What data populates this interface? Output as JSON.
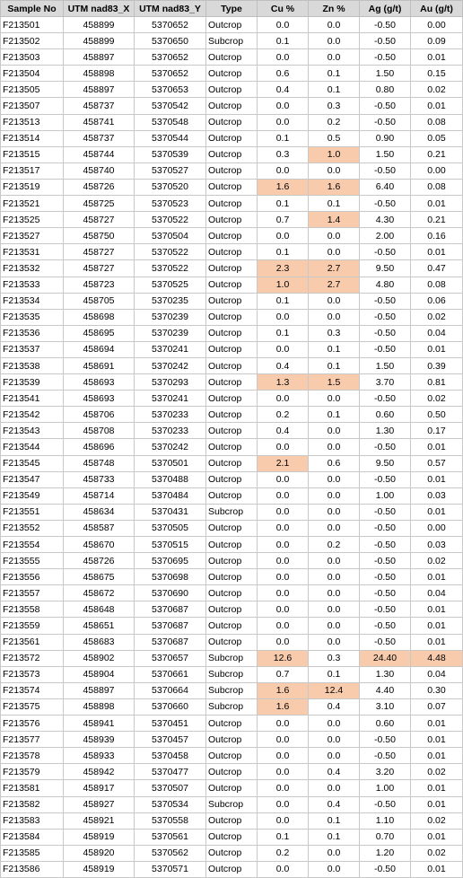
{
  "headers": [
    "Sample No",
    "UTM nad83_X",
    "UTM nad83_Y",
    "Type",
    "Cu %",
    "Zn %",
    "Ag (g/t)",
    "Au (g/t)"
  ],
  "highlight_color": "#f8cbad",
  "header_color": "#d9d9d9",
  "rows": [
    {
      "cells": [
        "F213501",
        "458899",
        "5370652",
        "Outcrop",
        "0.0",
        "0.0",
        "-0.50",
        "0.00"
      ],
      "hl": []
    },
    {
      "cells": [
        "F213502",
        "458899",
        "5370650",
        "Subcrop",
        "0.1",
        "0.0",
        "-0.50",
        "0.09"
      ],
      "hl": []
    },
    {
      "cells": [
        "F213503",
        "458897",
        "5370652",
        "Outcrop",
        "0.0",
        "0.0",
        "-0.50",
        "0.01"
      ],
      "hl": []
    },
    {
      "cells": [
        "F213504",
        "458898",
        "5370652",
        "Outcrop",
        "0.6",
        "0.1",
        "1.50",
        "0.15"
      ],
      "hl": []
    },
    {
      "cells": [
        "F213505",
        "458897",
        "5370653",
        "Outcrop",
        "0.4",
        "0.1",
        "0.80",
        "0.02"
      ],
      "hl": []
    },
    {
      "cells": [
        "F213507",
        "458737",
        "5370542",
        "Outcrop",
        "0.0",
        "0.3",
        "-0.50",
        "0.01"
      ],
      "hl": []
    },
    {
      "cells": [
        "F213513",
        "458741",
        "5370548",
        "Outcrop",
        "0.0",
        "0.2",
        "-0.50",
        "0.08"
      ],
      "hl": []
    },
    {
      "cells": [
        "F213514",
        "458737",
        "5370544",
        "Outcrop",
        "0.1",
        "0.5",
        "0.90",
        "0.05"
      ],
      "hl": []
    },
    {
      "cells": [
        "F213515",
        "458744",
        "5370539",
        "Outcrop",
        "0.3",
        "1.0",
        "1.50",
        "0.21"
      ],
      "hl": [
        5
      ]
    },
    {
      "cells": [
        "F213517",
        "458740",
        "5370527",
        "Outcrop",
        "0.0",
        "0.0",
        "-0.50",
        "0.00"
      ],
      "hl": []
    },
    {
      "cells": [
        "F213519",
        "458726",
        "5370520",
        "Outcrop",
        "1.6",
        "1.6",
        "6.40",
        "0.08"
      ],
      "hl": [
        4,
        5
      ]
    },
    {
      "cells": [
        "F213521",
        "458725",
        "5370523",
        "Outcrop",
        "0.1",
        "0.1",
        "-0.50",
        "0.01"
      ],
      "hl": []
    },
    {
      "cells": [
        "F213525",
        "458727",
        "5370522",
        "Outcrop",
        "0.7",
        "1.4",
        "4.30",
        "0.21"
      ],
      "hl": [
        5
      ]
    },
    {
      "cells": [
        "F213527",
        "458750",
        "5370504",
        "Outcrop",
        "0.0",
        "0.0",
        "2.00",
        "0.16"
      ],
      "hl": []
    },
    {
      "cells": [
        "F213531",
        "458727",
        "5370522",
        "Outcrop",
        "0.1",
        "0.0",
        "-0.50",
        "0.01"
      ],
      "hl": []
    },
    {
      "cells": [
        "F213532",
        "458727",
        "5370522",
        "Outcrop",
        "2.3",
        "2.7",
        "9.50",
        "0.47"
      ],
      "hl": [
        4,
        5
      ]
    },
    {
      "cells": [
        "F213533",
        "458723",
        "5370525",
        "Outcrop",
        "1.0",
        "2.7",
        "4.80",
        "0.08"
      ],
      "hl": [
        4,
        5
      ]
    },
    {
      "cells": [
        "F213534",
        "458705",
        "5370235",
        "Outcrop",
        "0.1",
        "0.0",
        "-0.50",
        "0.06"
      ],
      "hl": []
    },
    {
      "cells": [
        "F213535",
        "458698",
        "5370239",
        "Outcrop",
        "0.0",
        "0.0",
        "-0.50",
        "0.02"
      ],
      "hl": []
    },
    {
      "cells": [
        "F213536",
        "458695",
        "5370239",
        "Outcrop",
        "0.1",
        "0.3",
        "-0.50",
        "0.04"
      ],
      "hl": []
    },
    {
      "cells": [
        "F213537",
        "458694",
        "5370241",
        "Outcrop",
        "0.0",
        "0.1",
        "-0.50",
        "0.01"
      ],
      "hl": []
    },
    {
      "cells": [
        "F213538",
        "458691",
        "5370242",
        "Outcrop",
        "0.4",
        "0.1",
        "1.50",
        "0.39"
      ],
      "hl": []
    },
    {
      "cells": [
        "F213539",
        "458693",
        "5370293",
        "Outcrop",
        "1.3",
        "1.5",
        "3.70",
        "0.81"
      ],
      "hl": [
        4,
        5
      ]
    },
    {
      "cells": [
        "F213541",
        "458693",
        "5370241",
        "Outcrop",
        "0.0",
        "0.0",
        "-0.50",
        "0.02"
      ],
      "hl": []
    },
    {
      "cells": [
        "F213542",
        "458706",
        "5370233",
        "Outcrop",
        "0.2",
        "0.1",
        "0.60",
        "0.50"
      ],
      "hl": []
    },
    {
      "cells": [
        "F213543",
        "458708",
        "5370233",
        "Outcrop",
        "0.4",
        "0.0",
        "1.30",
        "0.17"
      ],
      "hl": []
    },
    {
      "cells": [
        "F213544",
        "458696",
        "5370242",
        "Outcrop",
        "0.0",
        "0.0",
        "-0.50",
        "0.01"
      ],
      "hl": []
    },
    {
      "cells": [
        "F213545",
        "458748",
        "5370501",
        "Outcrop",
        "2.1",
        "0.6",
        "9.50",
        "0.57"
      ],
      "hl": [
        4
      ]
    },
    {
      "cells": [
        "F213547",
        "458733",
        "5370488",
        "Outcrop",
        "0.0",
        "0.0",
        "-0.50",
        "0.01"
      ],
      "hl": []
    },
    {
      "cells": [
        "F213549",
        "458714",
        "5370484",
        "Outcrop",
        "0.0",
        "0.0",
        "1.00",
        "0.03"
      ],
      "hl": []
    },
    {
      "cells": [
        "F213551",
        "458634",
        "5370431",
        "Subcrop",
        "0.0",
        "0.0",
        "-0.50",
        "0.01"
      ],
      "hl": []
    },
    {
      "cells": [
        "F213552",
        "458587",
        "5370505",
        "Outcrop",
        "0.0",
        "0.0",
        "-0.50",
        "0.00"
      ],
      "hl": []
    },
    {
      "cells": [
        "F213554",
        "458670",
        "5370515",
        "Outcrop",
        "0.0",
        "0.2",
        "-0.50",
        "0.03"
      ],
      "hl": []
    },
    {
      "cells": [
        "F213555",
        "458726",
        "5370695",
        "Outcrop",
        "0.0",
        "0.0",
        "-0.50",
        "0.02"
      ],
      "hl": []
    },
    {
      "cells": [
        "F213556",
        "458675",
        "5370698",
        "Outcrop",
        "0.0",
        "0.0",
        "-0.50",
        "0.01"
      ],
      "hl": []
    },
    {
      "cells": [
        "F213557",
        "458672",
        "5370690",
        "Outcrop",
        "0.0",
        "0.0",
        "-0.50",
        "0.04"
      ],
      "hl": []
    },
    {
      "cells": [
        "F213558",
        "458648",
        "5370687",
        "Outcrop",
        "0.0",
        "0.0",
        "-0.50",
        "0.01"
      ],
      "hl": []
    },
    {
      "cells": [
        "F213559",
        "458651",
        "5370687",
        "Outcrop",
        "0.0",
        "0.0",
        "-0.50",
        "0.01"
      ],
      "hl": []
    },
    {
      "cells": [
        "F213561",
        "458683",
        "5370687",
        "Outcrop",
        "0.0",
        "0.0",
        "-0.50",
        "0.01"
      ],
      "hl": []
    },
    {
      "cells": [
        "F213572",
        "458902",
        "5370657",
        "Subcrop",
        "12.6",
        "0.3",
        "24.40",
        "4.48"
      ],
      "hl": [
        4,
        6,
        7
      ]
    },
    {
      "cells": [
        "F213573",
        "458904",
        "5370661",
        "Subcrop",
        "0.7",
        "0.1",
        "1.30",
        "0.04"
      ],
      "hl": []
    },
    {
      "cells": [
        "F213574",
        "458897",
        "5370664",
        "Subcrop",
        "1.6",
        "12.4",
        "4.40",
        "0.30"
      ],
      "hl": [
        4,
        5
      ]
    },
    {
      "cells": [
        "F213575",
        "458898",
        "5370660",
        "Subcrop",
        "1.6",
        "0.4",
        "3.10",
        "0.07"
      ],
      "hl": [
        4
      ]
    },
    {
      "cells": [
        "F213576",
        "458941",
        "5370451",
        "Outcrop",
        "0.0",
        "0.0",
        "0.60",
        "0.01"
      ],
      "hl": []
    },
    {
      "cells": [
        "F213577",
        "458939",
        "5370457",
        "Outcrop",
        "0.0",
        "0.0",
        "-0.50",
        "0.01"
      ],
      "hl": []
    },
    {
      "cells": [
        "F213578",
        "458933",
        "5370458",
        "Outcrop",
        "0.0",
        "0.0",
        "-0.50",
        "0.01"
      ],
      "hl": []
    },
    {
      "cells": [
        "F213579",
        "458942",
        "5370477",
        "Outcrop",
        "0.0",
        "0.4",
        "3.20",
        "0.02"
      ],
      "hl": []
    },
    {
      "cells": [
        "F213581",
        "458917",
        "5370507",
        "Outcrop",
        "0.0",
        "0.0",
        "1.00",
        "0.01"
      ],
      "hl": []
    },
    {
      "cells": [
        "F213582",
        "458927",
        "5370534",
        "Subcrop",
        "0.0",
        "0.4",
        "-0.50",
        "0.01"
      ],
      "hl": []
    },
    {
      "cells": [
        "F213583",
        "458921",
        "5370558",
        "Outcrop",
        "0.0",
        "0.1",
        "1.10",
        "0.02"
      ],
      "hl": []
    },
    {
      "cells": [
        "F213584",
        "458919",
        "5370561",
        "Outcrop",
        "0.1",
        "0.1",
        "0.70",
        "0.01"
      ],
      "hl": []
    },
    {
      "cells": [
        "F213585",
        "458920",
        "5370562",
        "Outcrop",
        "0.2",
        "0.0",
        "1.20",
        "0.02"
      ],
      "hl": []
    },
    {
      "cells": [
        "F213586",
        "458919",
        "5370571",
        "Outcrop",
        "0.0",
        "0.0",
        "-0.50",
        "0.01"
      ],
      "hl": []
    }
  ]
}
